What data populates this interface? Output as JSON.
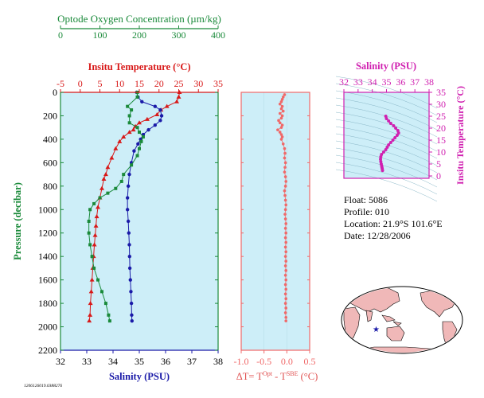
{
  "chart_data": [
    {
      "type": "line",
      "panel": "main-profile",
      "ylabel": "Pressure (decibar)",
      "yticks": [
        0,
        200,
        400,
        600,
        800,
        1000,
        1200,
        1400,
        1600,
        1800,
        2000,
        2200
      ],
      "ylim": [
        0,
        2200
      ],
      "y_inverted": true,
      "axes": {
        "oxygen": {
          "label": "Optode Oxygen Concentration (µm/kg)",
          "ticks": [
            0,
            100,
            200,
            300,
            400
          ],
          "range": [
            0,
            400
          ],
          "color": "#1a8a3a"
        },
        "temperature": {
          "label": "Insitu Temperature (°C)",
          "ticks": [
            -5,
            0,
            5,
            10,
            15,
            20,
            25,
            30,
            35
          ],
          "range": [
            -5,
            35
          ],
          "color": "#d81818"
        },
        "salinity": {
          "label": "Salinity (PSU)",
          "ticks": [
            32,
            33,
            34,
            35,
            36,
            37,
            38
          ],
          "range": [
            32,
            38
          ],
          "color": "#1a1aa8"
        }
      },
      "series": [
        {
          "axis": "temperature",
          "color": "#d81818",
          "marker": "triangle",
          "points": [
            [
              25.2,
              0
            ],
            [
              25.0,
              40
            ],
            [
              24.5,
              80
            ],
            [
              22,
              120
            ],
            [
              20.5,
              150
            ],
            [
              19.5,
              190
            ],
            [
              17,
              230
            ],
            [
              15,
              260
            ],
            [
              14,
              290
            ],
            [
              13.5,
              320
            ],
            [
              12.5,
              340
            ],
            [
              11,
              380
            ],
            [
              10,
              420
            ],
            [
              9,
              480
            ],
            [
              8,
              560
            ],
            [
              7,
              640
            ],
            [
              6.5,
              700
            ],
            [
              6,
              740
            ],
            [
              5.5,
              820
            ],
            [
              5,
              900
            ],
            [
              4.5,
              980
            ],
            [
              4.2,
              1060
            ],
            [
              4,
              1140
            ],
            [
              3.8,
              1220
            ],
            [
              3.6,
              1300
            ],
            [
              3.4,
              1400
            ],
            [
              3.2,
              1500
            ],
            [
              3,
              1600
            ],
            [
              2.8,
              1700
            ],
            [
              2.6,
              1800
            ],
            [
              2.5,
              1900
            ],
            [
              2.3,
              1950
            ]
          ]
        },
        {
          "axis": "salinity",
          "color": "#1a1aa8",
          "marker": "circle",
          "points": [
            [
              34.9,
              0
            ],
            [
              34.95,
              40
            ],
            [
              35.1,
              80
            ],
            [
              35.6,
              120
            ],
            [
              35.8,
              150
            ],
            [
              35.85,
              200
            ],
            [
              35.8,
              240
            ],
            [
              35.6,
              280
            ],
            [
              35.35,
              320
            ],
            [
              35.15,
              360
            ],
            [
              35.05,
              400
            ],
            [
              34.95,
              440
            ],
            [
              34.8,
              500
            ],
            [
              34.7,
              600
            ],
            [
              34.62,
              700
            ],
            [
              34.58,
              800
            ],
            [
              34.55,
              900
            ],
            [
              34.55,
              1000
            ],
            [
              34.58,
              1100
            ],
            [
              34.6,
              1200
            ],
            [
              34.62,
              1300
            ],
            [
              34.63,
              1400
            ],
            [
              34.64,
              1500
            ],
            [
              34.66,
              1600
            ],
            [
              34.68,
              1700
            ],
            [
              34.7,
              1800
            ],
            [
              34.71,
              1900
            ],
            [
              34.72,
              1950
            ]
          ]
        },
        {
          "axis": "oxygen",
          "color": "#1a8a3a",
          "marker": "square",
          "points": [
            [
              195,
              0
            ],
            [
              195,
              40
            ],
            [
              170,
              120
            ],
            [
              180,
              150
            ],
            [
              175,
              200
            ],
            [
              175,
              260
            ],
            [
              195,
              300
            ],
            [
              200,
              340
            ],
            [
              210,
              380
            ],
            [
              205,
              420
            ],
            [
              200,
              480
            ],
            [
              195,
              540
            ],
            [
              180,
              620
            ],
            [
              160,
              700
            ],
            [
              155,
              760
            ],
            [
              140,
              820
            ],
            [
              120,
              860
            ],
            [
              100,
              900
            ],
            [
              85,
              950
            ],
            [
              75,
              1000
            ],
            [
              72,
              1100
            ],
            [
              72,
              1200
            ],
            [
              75,
              1300
            ],
            [
              80,
              1400
            ],
            [
              85,
              1500
            ],
            [
              95,
              1600
            ],
            [
              105,
              1700
            ],
            [
              115,
              1800
            ],
            [
              122,
              1900
            ],
            [
              125,
              1950
            ]
          ]
        }
      ]
    },
    {
      "type": "scatter",
      "panel": "delta-t",
      "xlabel_parts": [
        "ΔT= T",
        "Opt",
        " - T",
        "SBE",
        " (°C)"
      ],
      "xticks": [
        "-1.0",
        "-0.5",
        "0.0",
        "0.5"
      ],
      "xlim": [
        -1.0,
        0.5
      ],
      "ylim": [
        0,
        2200
      ],
      "color": "#f06868",
      "points": [
        [
          -0.05,
          20
        ],
        [
          -0.08,
          40
        ],
        [
          -0.1,
          60
        ],
        [
          -0.12,
          80
        ],
        [
          -0.15,
          100
        ],
        [
          -0.1,
          120
        ],
        [
          -0.12,
          140
        ],
        [
          -0.08,
          160
        ],
        [
          -0.15,
          180
        ],
        [
          -0.1,
          200
        ],
        [
          -0.12,
          220
        ],
        [
          -0.18,
          240
        ],
        [
          -0.15,
          260
        ],
        [
          -0.1,
          280
        ],
        [
          -0.12,
          300
        ],
        [
          -0.2,
          320
        ],
        [
          -0.15,
          340
        ],
        [
          -0.12,
          360
        ],
        [
          -0.1,
          380
        ],
        [
          -0.12,
          400
        ],
        [
          -0.08,
          440
        ],
        [
          -0.05,
          480
        ],
        [
          -0.04,
          520
        ],
        [
          -0.05,
          560
        ],
        [
          -0.03,
          600
        ],
        [
          -0.04,
          640
        ],
        [
          -0.05,
          680
        ],
        [
          -0.03,
          720
        ],
        [
          -0.02,
          760
        ],
        [
          -0.03,
          800
        ],
        [
          -0.05,
          840
        ],
        [
          -0.04,
          880
        ],
        [
          -0.03,
          920
        ],
        [
          -0.02,
          960
        ],
        [
          -0.03,
          1000
        ],
        [
          -0.04,
          1040
        ],
        [
          -0.03,
          1080
        ],
        [
          -0.02,
          1120
        ],
        [
          -0.03,
          1160
        ],
        [
          -0.02,
          1200
        ],
        [
          -0.03,
          1240
        ],
        [
          -0.02,
          1280
        ],
        [
          -0.03,
          1320
        ],
        [
          -0.02,
          1360
        ],
        [
          -0.03,
          1400
        ],
        [
          -0.02,
          1440
        ],
        [
          -0.03,
          1480
        ],
        [
          -0.02,
          1520
        ],
        [
          -0.03,
          1560
        ],
        [
          -0.02,
          1600
        ],
        [
          -0.03,
          1640
        ],
        [
          -0.02,
          1680
        ],
        [
          -0.03,
          1720
        ],
        [
          -0.02,
          1760
        ],
        [
          -0.03,
          1800
        ],
        [
          -0.02,
          1840
        ],
        [
          -0.03,
          1880
        ],
        [
          -0.02,
          1920
        ],
        [
          -0.02,
          1950
        ]
      ]
    },
    {
      "type": "scatter",
      "panel": "ts-diagram",
      "xlabel": "Salinity (PSU)",
      "ylabel": "Insitu Temperature (°C)",
      "xticks": [
        32,
        33,
        34,
        35,
        36,
        37,
        38
      ],
      "yticks": [
        0,
        5,
        10,
        15,
        20,
        25,
        30,
        35
      ],
      "xlim": [
        32,
        38
      ],
      "ylim": [
        -1,
        35
      ],
      "color": "#d020b0",
      "points": [
        [
          34.72,
          2.3
        ],
        [
          34.7,
          3
        ],
        [
          34.68,
          3.6
        ],
        [
          34.66,
          4.2
        ],
        [
          34.63,
          5
        ],
        [
          34.6,
          6
        ],
        [
          34.58,
          7
        ],
        [
          34.6,
          8
        ],
        [
          34.65,
          9
        ],
        [
          34.8,
          10
        ],
        [
          34.95,
          11
        ],
        [
          35.05,
          12
        ],
        [
          35.15,
          13
        ],
        [
          35.3,
          14
        ],
        [
          35.45,
          15
        ],
        [
          35.6,
          16
        ],
        [
          35.75,
          17
        ],
        [
          35.85,
          18
        ],
        [
          35.8,
          19
        ],
        [
          35.65,
          20
        ],
        [
          35.5,
          21
        ],
        [
          35.3,
          22
        ],
        [
          35.15,
          23
        ],
        [
          35.0,
          24
        ],
        [
          34.95,
          25
        ]
      ]
    }
  ],
  "float_info": {
    "float": "Float:  5086",
    "profile": "Profile:  010",
    "location": "Location:  21.9°S  101.6°E",
    "date": "Date:  12/28/2006"
  },
  "footer_id": "1206126019.0388276",
  "colors": {
    "plot_bg": "#cdeef8",
    "axis_green": "#1a8a3a",
    "axis_red": "#d81818",
    "axis_blue": "#1a1aa8",
    "axis_magenta": "#d020b0",
    "delta_color": "#f06868",
    "map_ocean": "#ffffff",
    "map_land": "#f0b8b8"
  }
}
